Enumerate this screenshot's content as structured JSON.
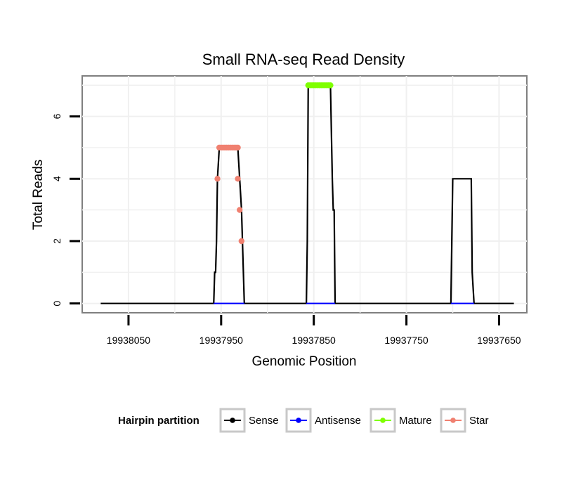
{
  "chart_data": {
    "type": "line",
    "title": "Small RNA-seq Read Density",
    "xlabel": "Genomic Position",
    "ylabel": "Total Reads",
    "x_reversed": true,
    "xlim": [
      19938100,
      19937620
    ],
    "ylim": [
      -0.3,
      7.3
    ],
    "grid": true,
    "x_ticks": [
      19938050,
      19937950,
      19937850,
      19937750,
      19937650
    ],
    "x_tick_labels": [
      "19938050",
      "19937950",
      "19937850",
      "19937750",
      "19937650"
    ],
    "y_ticks": [
      0,
      2,
      4,
      6
    ],
    "y_tick_labels": [
      "0",
      "2",
      "4",
      "6"
    ],
    "legend": {
      "title": "Hairpin partition",
      "position": "bottom",
      "entries": [
        {
          "name": "Sense",
          "color": "#000000"
        },
        {
          "name": "Antisense",
          "color": "#0000ff"
        },
        {
          "name": "Mature",
          "color": "#7fff00"
        },
        {
          "name": "Star",
          "color": "#f08070"
        }
      ]
    },
    "series": [
      {
        "name": "Sense",
        "color": "#000000",
        "points": [
          [
            19938080,
            0
          ],
          [
            19937958,
            0
          ],
          [
            19937957,
            1
          ],
          [
            19937956,
            1
          ],
          [
            19937955,
            2
          ],
          [
            19937954,
            4
          ],
          [
            19937952,
            5
          ],
          [
            19937932,
            5
          ],
          [
            19937930,
            4
          ],
          [
            19937928,
            3
          ],
          [
            19937927,
            2
          ],
          [
            19937925,
            0
          ],
          [
            19937858,
            0
          ],
          [
            19937857,
            2
          ],
          [
            19937856,
            7
          ],
          [
            19937832,
            7
          ],
          [
            19937830,
            4
          ],
          [
            19937829,
            3
          ],
          [
            19937828,
            3
          ],
          [
            19937827,
            0
          ],
          [
            19937702,
            0
          ],
          [
            19937701,
            2
          ],
          [
            19937700,
            4
          ],
          [
            19937680,
            4
          ],
          [
            19937679,
            1
          ],
          [
            19937677,
            0
          ],
          [
            19937634,
            0
          ]
        ]
      },
      {
        "name": "Antisense",
        "color": "#0000ff",
        "segments": [
          [
            [
              19937958,
              0
            ],
            [
              19937925,
              0
            ]
          ],
          [
            [
              19937858,
              0
            ],
            [
              19937827,
              0
            ]
          ],
          [
            [
              19937702,
              0
            ],
            [
              19937677,
              0
            ]
          ]
        ]
      },
      {
        "name": "Mature",
        "color": "#7fff00",
        "points": [
          [
            19937856,
            7
          ],
          [
            19937854,
            7
          ],
          [
            19937852,
            7
          ],
          [
            19937850,
            7
          ],
          [
            19937848,
            7
          ],
          [
            19937846,
            7
          ],
          [
            19937844,
            7
          ],
          [
            19937842,
            7
          ],
          [
            19937840,
            7
          ],
          [
            19937838,
            7
          ],
          [
            19937836,
            7
          ],
          [
            19937834,
            7
          ],
          [
            19937832,
            7
          ]
        ]
      },
      {
        "name": "Star",
        "color": "#f08070",
        "points": [
          [
            19937954,
            4
          ],
          [
            19937952,
            5
          ],
          [
            19937950,
            5
          ],
          [
            19937948,
            5
          ],
          [
            19937946,
            5
          ],
          [
            19937944,
            5
          ],
          [
            19937942,
            5
          ],
          [
            19937940,
            5
          ],
          [
            19937938,
            5
          ],
          [
            19937936,
            5
          ],
          [
            19937934,
            5
          ],
          [
            19937932,
            5
          ],
          [
            19937932,
            4
          ],
          [
            19937930,
            3
          ],
          [
            19937928,
            2
          ]
        ]
      }
    ]
  }
}
